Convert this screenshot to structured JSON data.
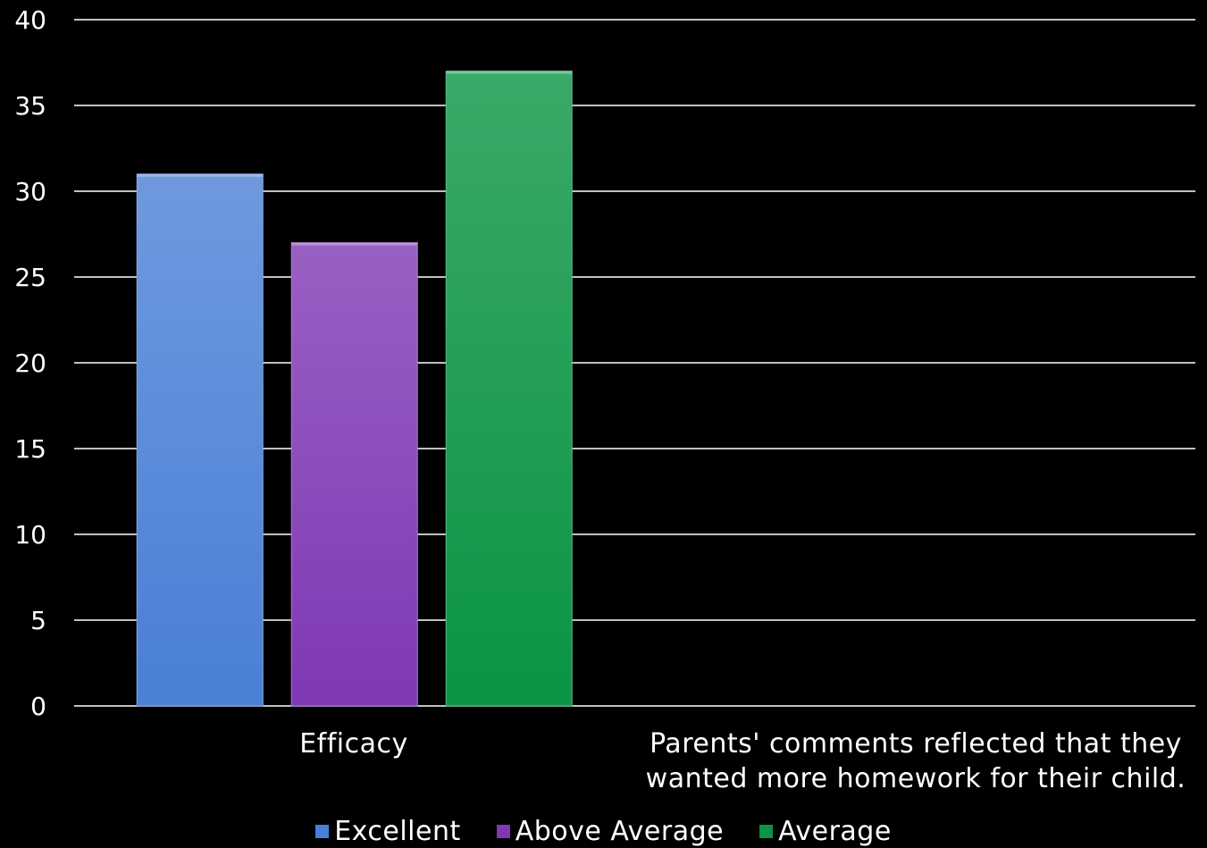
{
  "chart_data": {
    "type": "bar",
    "categories": [
      "Efficacy",
      "Parents' comments reflected that they wanted more homework for their child."
    ],
    "series": [
      {
        "name": "Excellent",
        "values": [
          31,
          null
        ],
        "color": "#4a7fd6"
      },
      {
        "name": "Above Average",
        "values": [
          27,
          null
        ],
        "color": "#7f38b4"
      },
      {
        "name": "Average",
        "values": [
          37,
          null
        ],
        "color": "#0a9444"
      }
    ],
    "ylim": [
      0,
      40
    ],
    "yticks": [
      0,
      5,
      10,
      15,
      20,
      25,
      30,
      35,
      40
    ],
    "grid": true,
    "legend_position": "bottom",
    "category_labels": {
      "c0": "Efficacy",
      "c1_line1": "Parents' comments reflected that they",
      "c1_line2": "wanted more homework for their child."
    },
    "legend": {
      "s0": "Excellent",
      "s1": "Above Average",
      "s2": "Average"
    }
  }
}
